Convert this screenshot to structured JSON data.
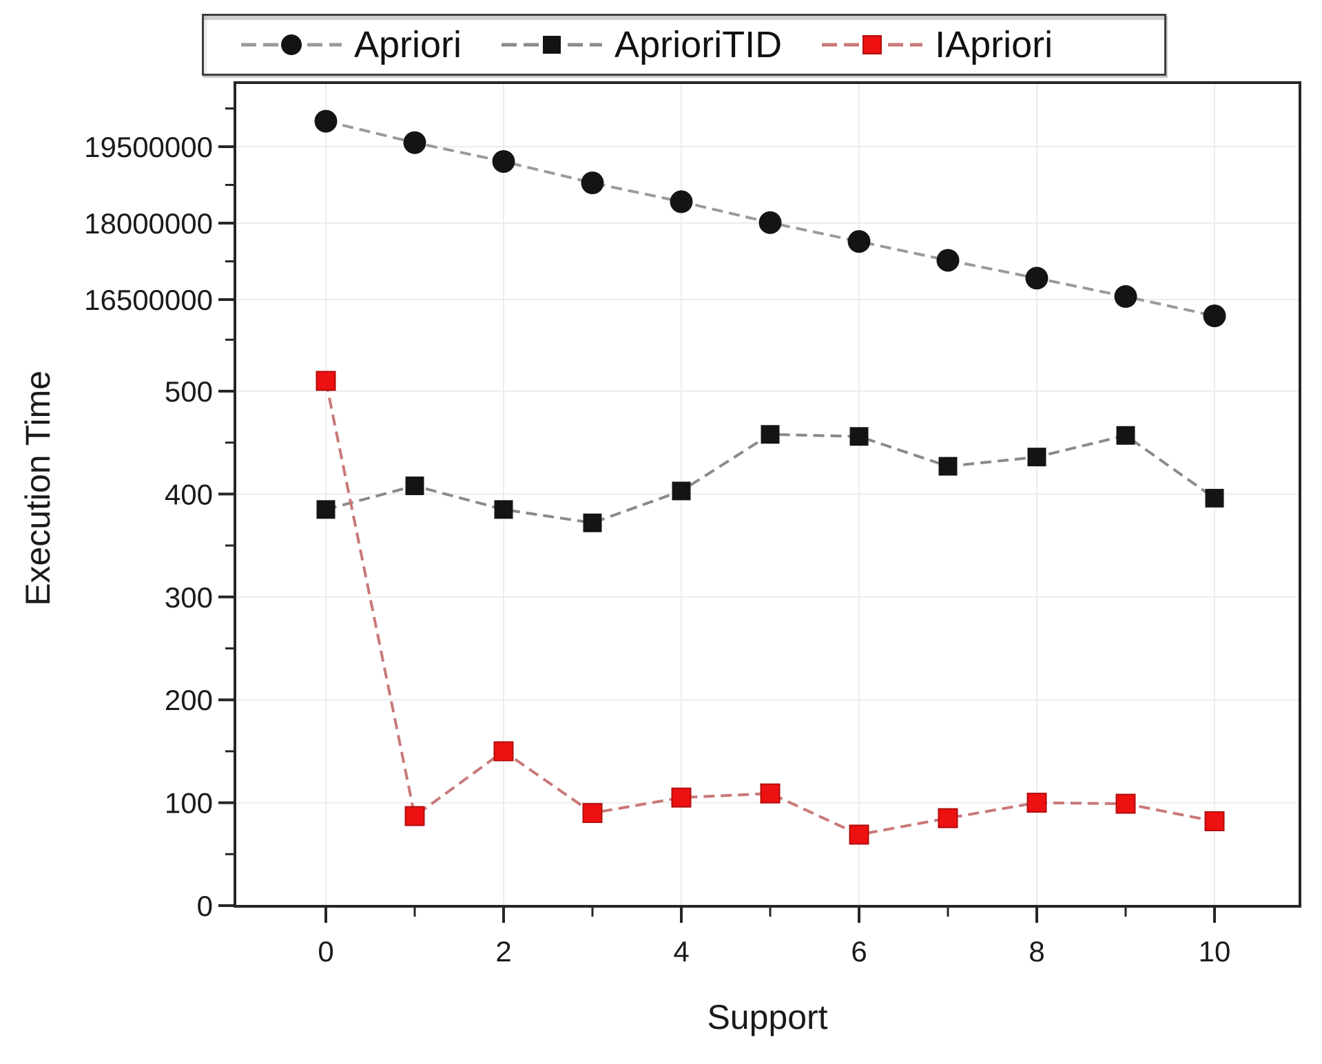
{
  "chart_data": {
    "type": "line",
    "title": "",
    "xlabel": "Support",
    "ylabel": "Execution Time",
    "legend_position": "top",
    "grid": true,
    "x": [
      0,
      1,
      2,
      3,
      4,
      5,
      6,
      7,
      8,
      9,
      10
    ],
    "x_axis": {
      "major_ticks": [
        0,
        2,
        4,
        6,
        8,
        10
      ],
      "minor_ticks": [
        1,
        3,
        5,
        7,
        9
      ],
      "range": [
        -1,
        11
      ]
    },
    "y_axis": {
      "broken": true,
      "lower_segment_ticks": [
        0,
        100,
        200,
        300,
        400,
        500
      ],
      "lower_minor_ticks": [
        50,
        150,
        250,
        350,
        450,
        550
      ],
      "upper_segment_ticks": [
        16500000,
        18000000,
        19500000
      ],
      "upper_minor_ticks": [
        17250000,
        18750000,
        20250000
      ]
    },
    "series": [
      {
        "name": "Apriori",
        "marker": "circle",
        "marker_color": "#141414",
        "line_color": "#9a9a9a",
        "values": [
          20000000,
          19580000,
          19210000,
          18790000,
          18420000,
          18010000,
          17640000,
          17270000,
          16920000,
          16560000,
          16180000
        ]
      },
      {
        "name": "AprioriTID",
        "marker": "square",
        "marker_color": "#141414",
        "line_color": "#8a8a8a",
        "values": [
          385,
          408,
          385,
          372,
          403,
          458,
          456,
          427,
          436,
          457,
          396
        ]
      },
      {
        "name": "IApriori",
        "marker": "square",
        "marker_color": "#ee1111",
        "marker_edge": "#b30d0d",
        "line_color": "#c97878",
        "values": [
          510,
          87,
          150,
          90,
          105,
          109,
          69,
          85,
          100,
          99,
          82
        ]
      }
    ],
    "colors": {
      "frame": "#262626",
      "grid": "#ececec",
      "text": "#1a1a1a"
    }
  }
}
